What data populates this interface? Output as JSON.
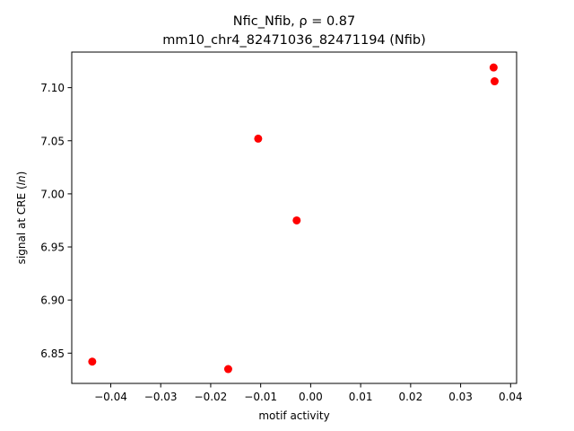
{
  "chart_data": {
    "type": "scatter",
    "title_prefix": "Nfic_Nfib, ",
    "title_rho": "ρ = 0.87",
    "subtitle": "mm10_chr4_82471036_82471194 (Nfib)",
    "xlabel": "motif activity",
    "ylabel_prefix": "signal at CRE (",
    "ylabel_italic": "ln",
    "ylabel_suffix": ")",
    "xlim": [
      -0.0478,
      0.0412
    ],
    "ylim": [
      6.8215,
      7.1335
    ],
    "xticks": [
      {
        "value": -0.04,
        "label": "−0.04"
      },
      {
        "value": -0.03,
        "label": "−0.03"
      },
      {
        "value": -0.02,
        "label": "−0.02"
      },
      {
        "value": -0.01,
        "label": "−0.01"
      },
      {
        "value": 0.0,
        "label": "0.00"
      },
      {
        "value": 0.01,
        "label": "0.01"
      },
      {
        "value": 0.02,
        "label": "0.02"
      },
      {
        "value": 0.03,
        "label": "0.03"
      },
      {
        "value": 0.04,
        "label": "0.04"
      }
    ],
    "yticks": [
      {
        "value": 6.85,
        "label": "6.85"
      },
      {
        "value": 6.9,
        "label": "6.90"
      },
      {
        "value": 6.95,
        "label": "6.95"
      },
      {
        "value": 7.0,
        "label": "7.00"
      },
      {
        "value": 7.05,
        "label": "7.05"
      },
      {
        "value": 7.1,
        "label": "7.10"
      }
    ],
    "grid": false,
    "point_color": "#ff0000",
    "points": [
      {
        "x": -0.0437,
        "y": 6.842
      },
      {
        "x": -0.0165,
        "y": 6.835
      },
      {
        "x": -0.0105,
        "y": 7.052
      },
      {
        "x": -0.0028,
        "y": 6.975
      },
      {
        "x": 0.0366,
        "y": 7.119
      },
      {
        "x": 0.0368,
        "y": 7.106
      }
    ]
  }
}
